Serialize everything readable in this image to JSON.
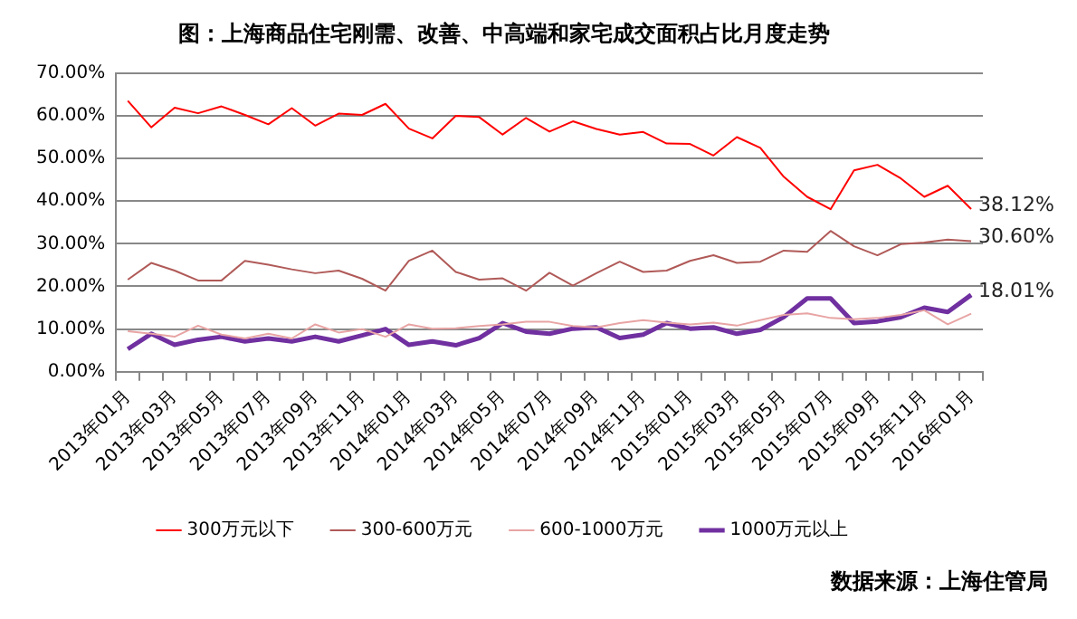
{
  "chart_data": {
    "type": "line",
    "title": "图：上海商品住宅刚需、改善、中高端和家宅成交面积占比月度走势",
    "categories": [
      "2013年01月",
      null,
      "2013年03月",
      null,
      "2013年05月",
      null,
      "2013年07月",
      null,
      "2013年09月",
      null,
      "2013年11月",
      null,
      "2014年01月",
      null,
      "2014年03月",
      null,
      "2014年05月",
      null,
      "2014年07月",
      null,
      "2014年09月",
      null,
      "2014年11月",
      null,
      "2015年01月",
      null,
      "2015年03月",
      null,
      "2015年05月",
      null,
      "2015年07月",
      null,
      "2015年09月",
      null,
      "2015年11月",
      null,
      "2016年01月"
    ],
    "series": [
      {
        "name": "300万元以下",
        "color": "#ff0000",
        "values": [
          63.5,
          57.3,
          61.9,
          60.6,
          62.2,
          60.2,
          58,
          61.8,
          57.7,
          60.5,
          60.2,
          62.8,
          57,
          54.7,
          60,
          59.7,
          55.6,
          59.5,
          56.3,
          58.7,
          56.9,
          55.6,
          56.2,
          53.5,
          53.4,
          50.7,
          55,
          52.5,
          45.7,
          41,
          38.1,
          47.2,
          48.5,
          45.3,
          41,
          43.6,
          38.12
        ],
        "value_labels": [
          null,
          null,
          null,
          null,
          null,
          null,
          null,
          null,
          null,
          null,
          null,
          null,
          null,
          null,
          null,
          null,
          null,
          null,
          null,
          null,
          null,
          null,
          null,
          null,
          null,
          null,
          null,
          null,
          null,
          null,
          null,
          null,
          null,
          null,
          null,
          null,
          "38.12%"
        ]
      },
      {
        "name": "300-600万元",
        "color": "#b05a58",
        "values": [
          21.6,
          25.5,
          23.7,
          21.4,
          21.4,
          26,
          25.1,
          24,
          23.1,
          23.7,
          21.8,
          19,
          26,
          28.4,
          23.4,
          21.6,
          21.9,
          19,
          23.2,
          20.2,
          23.1,
          25.8,
          23.4,
          23.7,
          26,
          27.3,
          25.5,
          25.8,
          28.4,
          28.1,
          33,
          29.4,
          27.3,
          29.9,
          30.3,
          31,
          30.6
        ],
        "value_labels": [
          null,
          null,
          null,
          null,
          null,
          null,
          null,
          null,
          null,
          null,
          null,
          null,
          null,
          null,
          null,
          null,
          null,
          null,
          null,
          null,
          null,
          null,
          null,
          null,
          null,
          null,
          null,
          null,
          null,
          null,
          null,
          null,
          null,
          null,
          null,
          null,
          "30.60%"
        ]
      },
      {
        "name": "600-1000万元",
        "color": "#e8a4a4",
        "values": [
          9.5,
          8.9,
          8.2,
          10.8,
          8.7,
          7.8,
          8.9,
          7.8,
          11.1,
          9.2,
          10,
          8.2,
          11.1,
          10.1,
          10.2,
          10.7,
          11.1,
          11.7,
          11.7,
          10.7,
          10.4,
          11.4,
          12.1,
          11.5,
          11.1,
          11.5,
          10.8,
          12.1,
          13.3,
          13.7,
          12.6,
          12.3,
          12.6,
          13.3,
          14.4,
          11.1,
          13.6
        ]
      },
      {
        "name": "1000万元以上",
        "color": "#7030a0",
        "values": [
          5.3,
          8.9,
          6.3,
          7.5,
          8.2,
          7.1,
          7.8,
          7.1,
          8.2,
          7.1,
          8.5,
          10,
          6.3,
          7.1,
          6.2,
          7.9,
          11.4,
          9.4,
          8.9,
          10.1,
          10.4,
          7.9,
          8.7,
          11.4,
          10.1,
          10.4,
          8.9,
          9.8,
          12.8,
          17.2,
          17.2,
          11.4,
          11.8,
          12.8,
          15,
          14,
          18.01
        ],
        "value_labels": [
          null,
          null,
          null,
          null,
          null,
          null,
          null,
          null,
          null,
          null,
          null,
          null,
          null,
          null,
          null,
          null,
          null,
          null,
          null,
          null,
          null,
          null,
          null,
          null,
          null,
          null,
          null,
          null,
          null,
          null,
          null,
          null,
          null,
          null,
          null,
          null,
          "18.01%"
        ]
      }
    ],
    "ylim": [
      0,
      70
    ],
    "yticks": [
      {
        "value": 0,
        "label": "0.00%"
      },
      {
        "value": 10,
        "label": "10.00%"
      },
      {
        "value": 20,
        "label": "20.00%"
      },
      {
        "value": 30,
        "label": "30.00%"
      },
      {
        "value": 40,
        "label": "40.00%"
      },
      {
        "value": 50,
        "label": "50.00%"
      },
      {
        "value": 60,
        "label": "60.00%"
      },
      {
        "value": 70,
        "label": "70.00%"
      }
    ],
    "grid": "y",
    "legend": "bottom",
    "marker": "none",
    "line_style": "solid",
    "annotations": [
      "数据来源：上海住管局"
    ]
  }
}
